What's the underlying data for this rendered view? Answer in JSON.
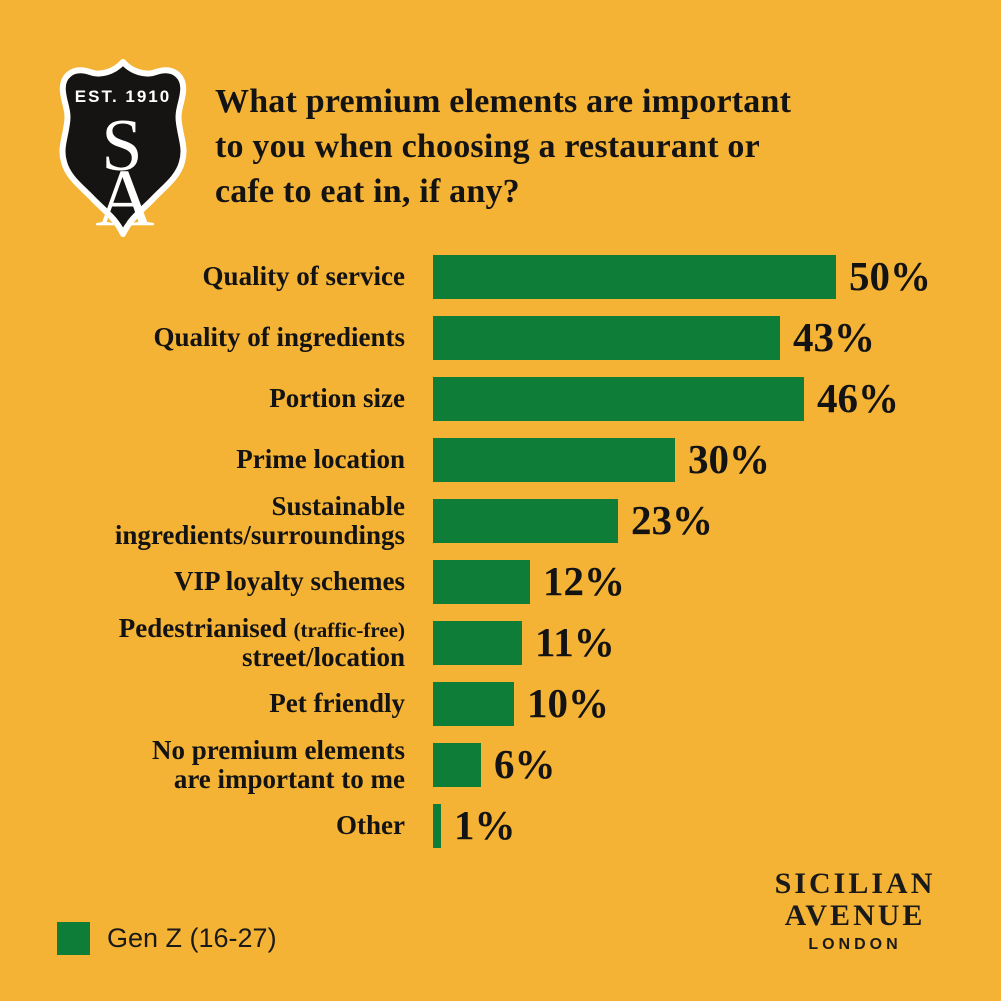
{
  "page": {
    "background": "#F5B335",
    "text_color": "#131313"
  },
  "logo": {
    "est_text": "EST. 1910",
    "initial_top": "S",
    "initial_bottom": "A",
    "shield_fill": "#151412",
    "shield_border": "#FFFFFF"
  },
  "title": "What premium elements are important\nto you when choosing a restaurant or\ncafe to eat in, if any?",
  "chart_data": {
    "type": "bar",
    "orientation": "horizontal",
    "bar_color": "#0E7D37",
    "xlim": [
      0,
      55
    ],
    "grid": false,
    "legend_position": "bottom-left",
    "categories": [
      "Quality of service",
      "Quality of ingredients",
      "Portion size",
      "Prime location",
      "Sustainable ingredients/surroundings",
      "VIP loyalty schemes",
      "Pedestrianised (traffic-free) street/location",
      "Pet friendly",
      "No premium elements are important to me",
      "Other"
    ],
    "series": [
      {
        "name": "Gen Z (16-27)",
        "values": [
          50,
          43,
          46,
          30,
          23,
          12,
          11,
          10,
          6,
          1
        ]
      }
    ],
    "value_labels": [
      "50%",
      "43%",
      "46%",
      "30%",
      "23%",
      "12%",
      "11%",
      "10%",
      "6%",
      "1%"
    ],
    "title": "What premium elements are important to you when choosing a restaurant or cafe to eat in, if any?"
  },
  "rows": [
    {
      "lines": [
        [
          {
            "t": "Quality of service"
          }
        ]
      ],
      "value": 50,
      "value_label": "50%"
    },
    {
      "lines": [
        [
          {
            "t": "Quality of ingredients"
          }
        ]
      ],
      "value": 43,
      "value_label": "43%"
    },
    {
      "lines": [
        [
          {
            "t": "Portion size"
          }
        ]
      ],
      "value": 46,
      "value_label": "46%"
    },
    {
      "lines": [
        [
          {
            "t": "Prime location"
          }
        ]
      ],
      "value": 30,
      "value_label": "30%"
    },
    {
      "lines": [
        [
          {
            "t": "Sustainable"
          }
        ],
        [
          {
            "t": "ingredients/surroundings"
          }
        ]
      ],
      "value": 23,
      "value_label": "23%"
    },
    {
      "lines": [
        [
          {
            "t": "VIP loyalty schemes"
          }
        ]
      ],
      "value": 12,
      "value_label": "12%"
    },
    {
      "lines": [
        [
          {
            "t": "Pedestrianised "
          },
          {
            "t": "(traffic-free)",
            "small": true
          }
        ],
        [
          {
            "t": "street/location"
          }
        ]
      ],
      "value": 11,
      "value_label": "11%"
    },
    {
      "lines": [
        [
          {
            "t": "Pet friendly"
          }
        ]
      ],
      "value": 10,
      "value_label": "10%"
    },
    {
      "lines": [
        [
          {
            "t": "No premium elements"
          }
        ],
        [
          {
            "t": "are important to me"
          }
        ]
      ],
      "value": 6,
      "value_label": "6%"
    },
    {
      "lines": [
        [
          {
            "t": "Other"
          }
        ]
      ],
      "value": 1,
      "value_label": "1%"
    }
  ],
  "legend": {
    "label": "Gen Z (16-27)",
    "swatch_color": "#0E7D37"
  },
  "brand": {
    "line1": "SICILIAN",
    "line2": "AVENUE",
    "line3": "LONDON"
  }
}
